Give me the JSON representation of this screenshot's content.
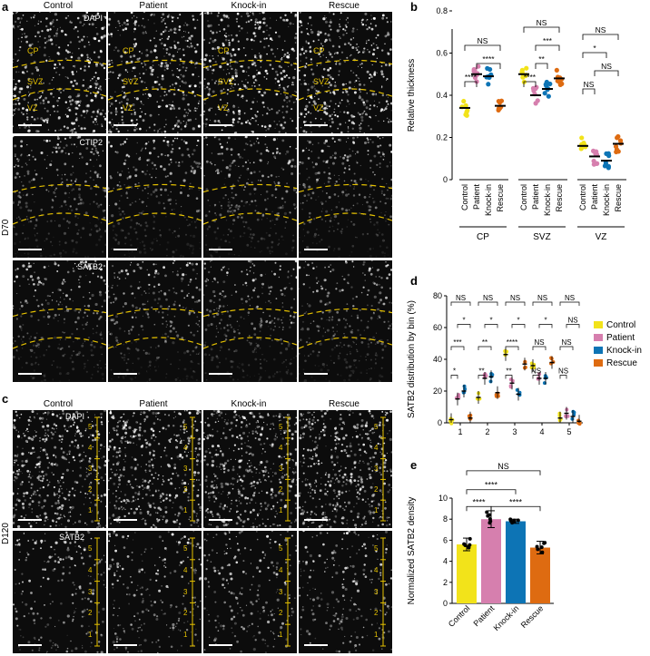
{
  "panel_letters": {
    "a": "a",
    "b": "b",
    "c": "c",
    "d": "d",
    "e": "e"
  },
  "columns": [
    "Control",
    "Patient",
    "Knock-in",
    "Rescue"
  ],
  "row_labels": {
    "d70": "D70",
    "d120": "D120"
  },
  "stains": {
    "dapi": "DAPI",
    "ctip2": "CTIP2",
    "satb2": "SATB2"
  },
  "regions": {
    "cp": "CP",
    "svz": "SVZ",
    "vz": "VZ"
  },
  "bins": [
    "5",
    "4",
    "3",
    "2",
    "1"
  ],
  "colors": {
    "control": "#f2e31a",
    "patient": "#d67fae",
    "knockin": "#0d74b5",
    "rescue": "#de6b11",
    "region_line": "#e6c200"
  },
  "chart_data": [
    {
      "type": "scatter",
      "panel": "b",
      "ylabel": "Relative thickness",
      "ylim": [
        0,
        0.8
      ],
      "yticks": [
        "0",
        "0.2",
        "0.4",
        "0.6",
        "0.8"
      ],
      "groups": [
        "CP",
        "SVZ",
        "VZ"
      ],
      "categories": [
        "Control",
        "Patient",
        "Knock-in",
        "Rescue"
      ],
      "means": {
        "CP": [
          0.34,
          0.5,
          0.49,
          0.35
        ],
        "SVZ": [
          0.5,
          0.4,
          0.43,
          0.48
        ],
        "VZ": [
          0.16,
          0.11,
          0.09,
          0.17
        ]
      },
      "significance": {
        "CP": [
          {
            "pair": [
              0,
              1
            ],
            "label": "****"
          },
          {
            "pair": [
              1,
              3
            ],
            "label": "****"
          },
          {
            "pair": [
              0,
              3
            ],
            "label": "NS"
          }
        ],
        "SVZ": [
          {
            "pair": [
              0,
              1
            ],
            "label": "****"
          },
          {
            "pair": [
              1,
              2
            ],
            "label": "**"
          },
          {
            "pair": [
              1,
              3
            ],
            "label": "***"
          },
          {
            "pair": [
              0,
              3
            ],
            "label": "NS"
          }
        ],
        "VZ": [
          {
            "pair": [
              0,
              1
            ],
            "label": "NS"
          },
          {
            "pair": [
              1,
              3
            ],
            "label": "NS"
          },
          {
            "pair": [
              0,
              2
            ],
            "label": "*"
          },
          {
            "pair": [
              0,
              3
            ],
            "label": "NS"
          }
        ]
      }
    },
    {
      "type": "scatter",
      "panel": "d",
      "ylabel": "SATB2 distribution by bin (%)",
      "ylim": [
        0,
        80
      ],
      "yticks": [
        "0",
        "20",
        "40",
        "60",
        "80"
      ],
      "x": [
        "1",
        "2",
        "3",
        "4",
        "5"
      ],
      "legend": [
        "Control",
        "Patient",
        "Knock-in",
        "Rescue"
      ],
      "series": [
        {
          "name": "Control",
          "values": [
            2,
            16,
            43,
            36,
            3
          ]
        },
        {
          "name": "Patient",
          "values": [
            15,
            28,
            25,
            28,
            6
          ]
        },
        {
          "name": "Knock-in",
          "values": [
            20,
            29,
            18,
            28,
            4
          ]
        },
        {
          "name": "Rescue",
          "values": [
            3,
            19,
            37,
            38,
            1
          ]
        }
      ],
      "significance": {
        "1": [
          "*",
          "***",
          "*",
          "NS"
        ],
        "2": [
          "**",
          "**",
          "*",
          "NS"
        ],
        "3": [
          "**",
          "****",
          "*",
          "NS"
        ],
        "4": [
          "NS",
          "NS",
          "*",
          "NS"
        ],
        "5": [
          "NS",
          "NS",
          "NS",
          "NS"
        ]
      }
    },
    {
      "type": "bar",
      "panel": "e",
      "ylabel": "Normalized SATB2 density",
      "ylim": [
        0,
        10
      ],
      "yticks": [
        "0",
        "2",
        "4",
        "6",
        "8",
        "10"
      ],
      "categories": [
        "Control",
        "Patient",
        "Knock-in",
        "Rescue"
      ],
      "values": [
        5.6,
        8.0,
        7.8,
        5.3
      ],
      "errors": [
        0.6,
        0.8,
        0.2,
        0.6
      ],
      "significance": [
        {
          "pair": [
            0,
            1
          ],
          "label": "****"
        },
        {
          "pair": [
            1,
            3
          ],
          "label": "****"
        },
        {
          "pair": [
            0,
            2
          ],
          "label": "****"
        },
        {
          "pair": [
            0,
            3
          ],
          "label": "NS"
        }
      ]
    }
  ]
}
